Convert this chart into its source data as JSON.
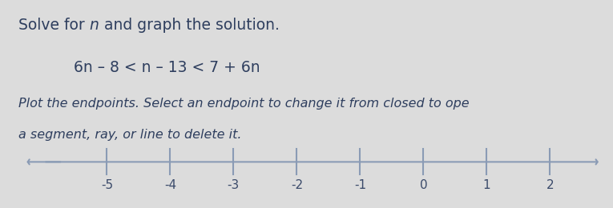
{
  "line1_parts": [
    "Solve for ",
    "n",
    " and graph the solution."
  ],
  "equation": "6n – 8 < n – 13 < 7 + 6n",
  "instr1": "Plot the endpoints. Select an endpoint to change it from closed to ope",
  "instr2": "a segment, ray, or line to delete it.",
  "tick_positions": [
    -5,
    -4,
    -3,
    -2,
    -1,
    0,
    1,
    2
  ],
  "tick_labels": [
    "-5",
    "-4",
    "-3",
    "-2",
    "-1",
    "0",
    "1",
    "2"
  ],
  "x_min": -6.3,
  "x_max": 2.8,
  "axis_color": "#8a9bb5",
  "label_color": "#3a4a6a",
  "bg_color": "#dcdcdc",
  "text_color": "#2e3e5e",
  "title_fontsize": 13.5,
  "eq_fontsize": 13.5,
  "instr_fontsize": 11.5,
  "tick_fontsize": 11,
  "figsize": [
    7.65,
    2.6
  ],
  "dpi": 100
}
